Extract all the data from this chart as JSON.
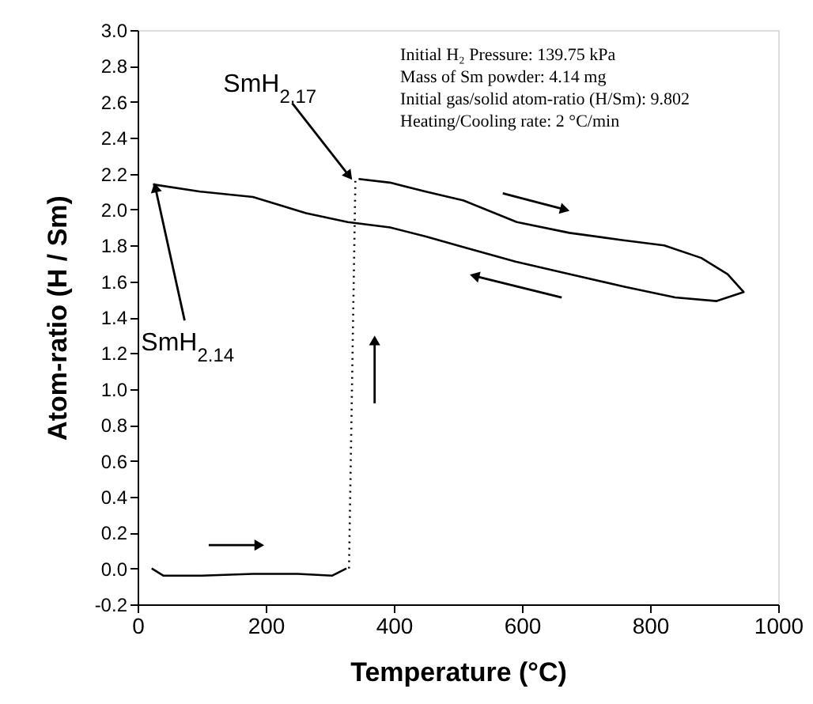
{
  "chart_data": {
    "type": "line",
    "xlabel": "Temperature (°C)",
    "ylabel": "Atom-ratio (H / Sm)",
    "xlim": [
      0,
      1000
    ],
    "xticks": [
      0,
      200,
      400,
      600,
      800,
      1000
    ],
    "ylim": [
      -0.2,
      3.0
    ],
    "yticks": [
      {
        "value": -0.2,
        "label": "-0.2"
      },
      {
        "value": 0,
        "label": "0.0"
      },
      0.2,
      0.4,
      0.6,
      0.8,
      {
        "value": 1,
        "label": "1.0"
      },
      1.2,
      1.4,
      1.6,
      1.8,
      {
        "value": 2,
        "label": "2.0"
      },
      2.2,
      2.4,
      2.6,
      2.8,
      {
        "value": 3,
        "label": "3.0"
      }
    ],
    "grid": false,
    "marker": "none",
    "series": [
      {
        "color": "#000000",
        "line_style": "solid",
        "x": [
          22,
          40,
          100,
          180,
          250,
          304,
          326
        ],
        "values": [
          0.0,
          -0.04,
          -0.04,
          -0.03,
          -0.03,
          -0.04,
          0.0
        ]
      },
      {
        "color": "#000000",
        "line_style": "dotted",
        "x": [
          330,
          340
        ],
        "values": [
          0.0,
          2.17
        ]
      },
      {
        "color": "#000000",
        "line_style": "solid",
        "x": [
          345,
          394,
          450,
          509,
          592,
          674,
          756,
          822,
          880,
          921,
          946,
          904,
          839,
          760,
          674,
          590,
          509,
          450,
          394,
          328,
          263,
          180,
          98,
          24
        ],
        "values": [
          2.17,
          2.15,
          2.1,
          2.05,
          1.93,
          1.87,
          1.83,
          1.8,
          1.73,
          1.64,
          1.54,
          1.49,
          1.51,
          1.57,
          1.64,
          1.71,
          1.79,
          1.85,
          1.9,
          1.93,
          1.98,
          2.07,
          2.1,
          2.14
        ]
      }
    ],
    "annotations": [
      {
        "text": "SmH$_{2.17}$",
        "x": 345,
        "y": 2.17
      },
      {
        "text": "SmH$_{2.14}$",
        "x": 24,
        "y": 2.14
      },
      "Initial H₂ Pressure: 139.75 kPa",
      "Mass of Sm powder: 4.14 mg",
      "Initial gas/solid atom-ratio (H/Sm): 9.802",
      "Heating/Cooling rate: 2 °C/min"
    ]
  }
}
